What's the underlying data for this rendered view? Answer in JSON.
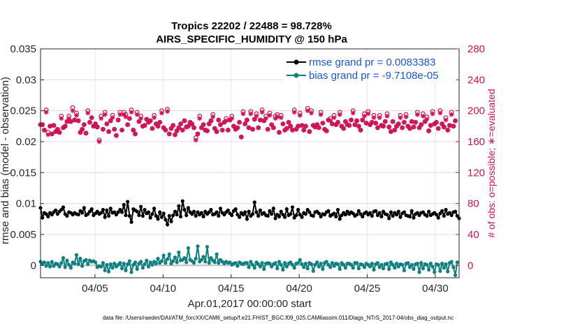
{
  "chart_data": {
    "type": "line",
    "title": [
      "Tropics 22202 / 22488 = 98.728%",
      "AIRS_SPECIFIC_HUMIDITY @ 150 hPa"
    ],
    "xlabel": "Apr.01,2017 00:00:00 start",
    "ylabel_left": "rmse and bias (model - observation)",
    "ylabel_right": "# of obs: o=possible; ∗=evaluated",
    "x_domain": [
      1,
      31.75
    ],
    "x_ticks": [
      {
        "value": 5,
        "label": "04/05"
      },
      {
        "value": 10,
        "label": "04/10"
      },
      {
        "value": 15,
        "label": "04/15"
      },
      {
        "value": 20,
        "label": "04/20"
      },
      {
        "value": 25,
        "label": "04/25"
      },
      {
        "value": 30,
        "label": "04/30"
      }
    ],
    "y_left": {
      "range": [
        -0.002,
        0.035
      ],
      "ticks": [
        "0",
        "0.005",
        "0.01",
        "0.015",
        "0.02",
        "0.025",
        "0.03",
        "0.035"
      ]
    },
    "y_right": {
      "range": [
        -16,
        280
      ],
      "ticks": [
        "0",
        "40",
        "80",
        "120",
        "160",
        "200",
        "240",
        "280"
      ]
    },
    "legend": [
      {
        "name": "rmse grand pr = 0.0083383",
        "color": "#000000"
      },
      {
        "name": "bias grand pr = -9.7108e-05",
        "color": "#0f8080"
      }
    ],
    "colors": {
      "rmse": "#000000",
      "bias": "#0f8080",
      "obs": "#cc1155",
      "zero_line": "#bfbfbf",
      "grid": "#e6e6e6",
      "axis": "#262626"
    },
    "rmse": [
      0.0093,
      0.0077,
      0.0085,
      0.0083,
      0.0079,
      0.0085,
      0.0082,
      0.0086,
      0.0089,
      0.0083,
      0.0087,
      0.009,
      0.0094,
      0.0083,
      0.008,
      0.0086,
      0.0085,
      0.0082,
      0.0085,
      0.0083,
      0.0082,
      0.0088,
      0.0085,
      0.0093,
      0.0081,
      0.0083,
      0.0087,
      0.0091,
      0.0081,
      0.0084,
      0.0087,
      0.0083,
      0.0085,
      0.009,
      0.0078,
      0.0089,
      0.008,
      0.0092,
      0.0085,
      0.0086,
      0.0082,
      0.0086,
      0.009,
      0.0086,
      0.0098,
      0.0081,
      0.0103,
      0.008,
      0.007,
      0.0091,
      0.0089,
      0.0087,
      0.0081,
      0.0095,
      0.008,
      0.009,
      0.0084,
      0.0086,
      0.0077,
      0.0083,
      0.0092,
      0.008,
      0.0075,
      0.0086,
      0.0078,
      0.0084,
      0.0074,
      0.0066,
      0.008,
      0.0071,
      0.0081,
      0.0087,
      0.0082,
      0.0096,
      0.0079,
      0.0104,
      0.009,
      0.0081,
      0.0093,
      0.0086,
      0.0083,
      0.0087,
      0.008,
      0.0086,
      0.0082,
      0.0085,
      0.0079,
      0.0087,
      0.0083,
      0.0086,
      0.009,
      0.0082,
      0.0083,
      0.0086,
      0.008,
      0.0092,
      0.0085,
      0.0082,
      0.0086,
      0.0089,
      0.0084,
      0.0081,
      0.0088,
      0.0091,
      0.0082,
      0.0078,
      0.0085,
      0.0082,
      0.0086,
      0.0075,
      0.0087,
      0.008,
      0.0083,
      0.0102,
      0.0086,
      0.008,
      0.0089,
      0.0083,
      0.0085,
      0.0081,
      0.008,
      0.0088,
      0.0083,
      0.0092,
      0.0076,
      0.0082,
      0.0079,
      0.0087,
      0.0082,
      0.0078,
      0.0091,
      0.0081,
      0.0083,
      0.0094,
      0.0077,
      0.0081,
      0.009,
      0.0082,
      0.0078,
      0.0085,
      0.0083,
      0.009,
      0.0086,
      0.0081,
      0.008,
      0.0086,
      0.0087,
      0.0084,
      0.0079,
      0.0083,
      0.0082,
      0.0086,
      0.0088,
      0.008,
      0.0082,
      0.0084,
      0.0079,
      0.009,
      0.0075,
      0.0081,
      0.0085,
      0.0082,
      0.0087,
      0.0083,
      0.0086,
      0.0084,
      0.008,
      0.0082,
      0.0088,
      0.0083,
      0.0079,
      0.0084,
      0.0086,
      0.0082,
      0.0085,
      0.008,
      0.0087,
      0.0088,
      0.0081,
      0.0085,
      0.0079,
      0.0087,
      0.0083,
      0.0082,
      0.0076,
      0.0086,
      0.008,
      0.0085,
      0.0082,
      0.0087,
      0.0078,
      0.0084,
      0.0086,
      0.0081,
      0.008,
      0.0079,
      0.0088,
      0.0077,
      0.0083,
      0.0085,
      0.0081,
      0.0085,
      0.0086,
      0.0082,
      0.008,
      0.0087,
      0.0081,
      0.0083,
      0.0085,
      0.0082,
      0.0077,
      0.0084,
      0.0088,
      0.008,
      0.009,
      0.0083,
      0.0085,
      0.0081,
      0.0086,
      0.0087,
      0.008,
      0.0076
    ],
    "bias": [
      0.0006,
      0.0003,
      0.0005,
      -0.0001,
      0.0004,
      -0.0002,
      0.0006,
      -0.0001,
      0.0003,
      0.0002,
      -0.0002,
      0.0004,
      0.0012,
      -0.0003,
      0.0008,
      0.0001,
      -0.0004,
      0.0005,
      0.0003,
      0.0017,
      0.0002,
      0.0011,
      -0.0001,
      0.0007,
      0.0009,
      0.0002,
      0.0008,
      0.0006,
      0.0007,
      0.0005,
      -0.0003,
      -0.0001,
      -0.0002,
      0.0004,
      -0.0008,
      0.0001,
      -0.001,
      0.0002,
      -0.0004,
      0.0003,
      -0.0002,
      0.0001,
      0.0004,
      -0.0005,
      0.0003,
      -0.0008,
      0.0002,
      0.0007,
      -0.0011,
      0.0001,
      0.0005,
      -0.0006,
      0.0003,
      0.0006,
      -0.0004,
      0.0002,
      0.0008,
      -0.0002,
      0.0005,
      0.0001,
      0.0006,
      0.0003,
      0.0011,
      0.0004,
      0.0007,
      0.0016,
      0.0004,
      0.001,
      0.0018,
      0.0003,
      0.0007,
      0.0013,
      0.0005,
      0.0021,
      0.0008,
      0.0009,
      0.0012,
      0.0005,
      0.0028,
      0.0009,
      0.0007,
      0.0004,
      0.0011,
      0.0031,
      0.0006,
      0.0009,
      0.0014,
      0.0006,
      0.003,
      0.0004,
      0.0012,
      0.0008,
      0.0005,
      0.0018,
      0.0004,
      0.0009,
      0.0006,
      0.0003,
      0.0006,
      0.0004,
      0.0005,
      0.0001,
      0.0003,
      0.0004,
      -0.0001,
      0.0005,
      0.0003,
      0.0002,
      0.0004,
      0.0004,
      -0.0003,
      0.0006,
      0.0001,
      -0.0004,
      0.0005,
      0.0002,
      -0.0002,
      0.0004,
      -0.0006,
      0.0003,
      0.0004,
      0.0003,
      -0.0002,
      0.0002,
      0.0004,
      -0.0005,
      0.0006,
      0.0001,
      -0.0007,
      0.0004,
      -0.0002,
      0.0003,
      0.0005,
      0.0001,
      -0.0004,
      0.0003,
      0.0004,
      0.0009,
      0.0002,
      -0.0003,
      0.0003,
      -0.0005,
      0.0004,
      0.0002,
      -0.0009,
      0.0001,
      0.0005,
      -0.0002,
      0.0003,
      -0.0006,
      0.0004,
      0.0006,
      0.0001,
      -0.0003,
      0.0004,
      -0.0001,
      0.0003,
      0.0002,
      -0.0006,
      0.0004,
      0.0001,
      -0.0004,
      0.0003,
      0.0003,
      0.0001,
      -0.0004,
      0.0004,
      0.0004,
      -0.0005,
      0.0002,
      0.0001,
      -0.0003,
      0.0003,
      0.0001,
      -0.0002,
      0.0003,
      -0.0007,
      0.0002,
      0.0004,
      -0.0003,
      0.0001,
      -0.0005,
      0.0002,
      0.0003,
      -0.0006,
      0.0005,
      0.0001,
      -0.0004,
      0.0003,
      -0.0002,
      0.0002,
      0.0001,
      -0.0008,
      0.0003,
      0.0004,
      -0.0003,
      0.0001,
      -0.0006,
      0.0002,
      0.0003,
      -0.0011,
      0.0004,
      -0.0005,
      0.0002,
      0.0001,
      -0.0007,
      0.0003,
      -0.0002,
      -0.0011,
      0.0002,
      0.0001,
      -0.0009,
      0.0003,
      -0.0004,
      0.0002,
      -0.001,
      0.0004,
      0.0006,
      -0.0003,
      -0.0016,
      0.0005
    ],
    "obs_evaluated": [
      182,
      182,
      175,
      198,
      169,
      180,
      170,
      181,
      173,
      176,
      172,
      190,
      178,
      180,
      186,
      190,
      186,
      200,
      188,
      194,
      187,
      172,
      176,
      182,
      171,
      197,
      185,
      191,
      180,
      183,
      179,
      160,
      190,
      176,
      195,
      183,
      173,
      187,
      191,
      176,
      168,
      188,
      195,
      175,
      195,
      192,
      182,
      190,
      198,
      175,
      170,
      195,
      186,
      190,
      180,
      181,
      189,
      185,
      187,
      177,
      191,
      183,
      180,
      185,
      197,
      178,
      175,
      199,
      170,
      177,
      181,
      169,
      174,
      178,
      183,
      175,
      187,
      179,
      180,
      185,
      183,
      178,
      162,
      170,
      190,
      178,
      182,
      175,
      174,
      183,
      187,
      192,
      177,
      173,
      188,
      182,
      175,
      185,
      187,
      175,
      188,
      190,
      180,
      176,
      178,
      185,
      166,
      196,
      183,
      188,
      178,
      196,
      176,
      189,
      193,
      178,
      188,
      198,
      187,
      190,
      176,
      194,
      182,
      178,
      190,
      192,
      172,
      191,
      183,
      175,
      177,
      185,
      180,
      175,
      198,
      176,
      180,
      194,
      181,
      175,
      180,
      200,
      173,
      197,
      181,
      179,
      182,
      178,
      195,
      184,
      176,
      174,
      188,
      187,
      183,
      191,
      182,
      185,
      195,
      180,
      177,
      186,
      182,
      181,
      188,
      197,
      182,
      187,
      180,
      175,
      188,
      193,
      184,
      196,
      182,
      185,
      191,
      184,
      178,
      191,
      181,
      180,
      186,
      193,
      179,
      173,
      186,
      175,
      180,
      183,
      191,
      178,
      185,
      192,
      180,
      177,
      186,
      179,
      185,
      195,
      178,
      182,
      193,
      186,
      189,
      174,
      181,
      196,
      183,
      185,
      177,
      197,
      183,
      179,
      188,
      175,
      181,
      195,
      180,
      187
    ],
    "obs_possible": [
      182,
      182,
      175,
      201,
      172,
      180,
      170,
      181,
      173,
      176,
      172,
      193,
      178,
      180,
      186,
      193,
      186,
      204,
      188,
      197,
      187,
      172,
      176,
      182,
      171,
      200,
      185,
      191,
      180,
      183,
      179,
      162,
      193,
      176,
      198,
      183,
      173,
      187,
      194,
      176,
      168,
      188,
      198,
      175,
      198,
      195,
      182,
      190,
      201,
      175,
      170,
      198,
      186,
      193,
      180,
      181,
      189,
      185,
      187,
      177,
      194,
      183,
      180,
      185,
      200,
      178,
      175,
      202,
      170,
      177,
      181,
      169,
      174,
      178,
      183,
      175,
      187,
      179,
      180,
      185,
      183,
      178,
      165,
      170,
      193,
      178,
      182,
      175,
      174,
      183,
      187,
      195,
      177,
      173,
      188,
      182,
      175,
      185,
      190,
      175,
      188,
      193,
      180,
      176,
      178,
      185,
      166,
      199,
      183,
      188,
      178,
      199,
      176,
      189,
      196,
      178,
      188,
      201,
      187,
      193,
      176,
      197,
      182,
      178,
      193,
      195,
      172,
      194,
      183,
      175,
      177,
      185,
      180,
      175,
      201,
      176,
      180,
      197,
      181,
      175,
      180,
      203,
      173,
      200,
      181,
      179,
      182,
      178,
      198,
      184,
      176,
      174,
      188,
      190,
      183,
      194,
      182,
      185,
      198,
      180,
      177,
      186,
      182,
      181,
      188,
      200,
      182,
      187,
      180,
      175,
      188,
      196,
      184,
      199,
      182,
      185,
      194,
      184,
      178,
      194,
      181,
      180,
      186,
      196,
      179,
      173,
      186,
      175,
      180,
      183,
      194,
      178,
      185,
      195,
      180,
      177,
      186,
      179,
      185,
      198,
      178,
      182,
      196,
      186,
      192,
      174,
      181,
      199,
      183,
      185,
      177,
      200,
      183,
      179,
      191,
      175,
      181,
      198,
      180,
      187
    ]
  },
  "footer": "data file: /Users/raeder/DAI/ATM_forcXX/CAM6_setup/f.e21.FHIST_BGC.f09_025.CAM6assim.011/Diags_NTrS_2017-04/obs_diag_output.nc"
}
